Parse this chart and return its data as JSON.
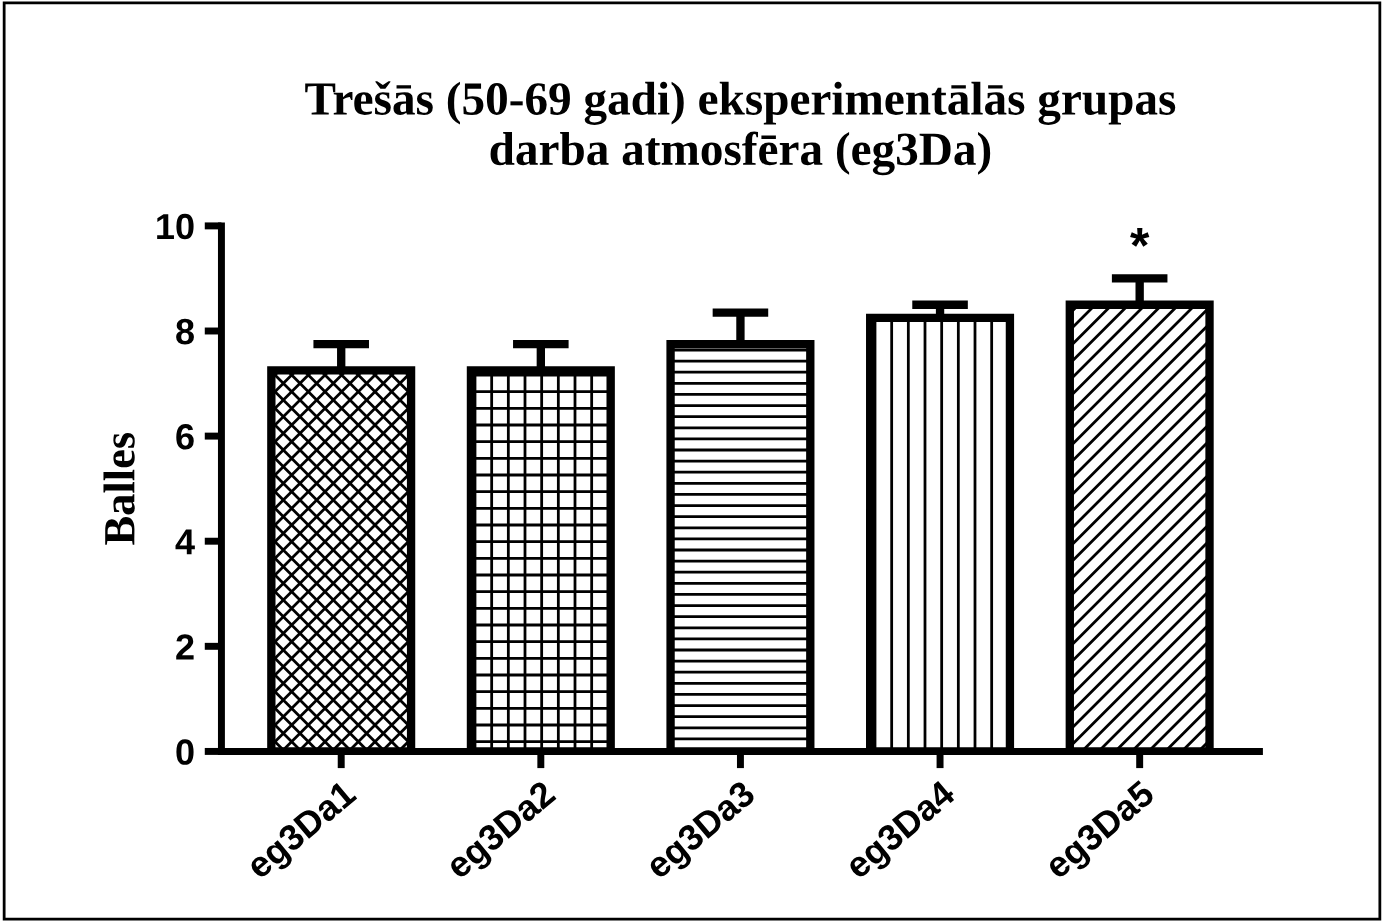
{
  "chart_data": {
    "type": "bar",
    "title": "Trešās (50-69 gadi) eksperimentālās grupas\ndarba atmosfēra (eg3Da)",
    "ylabel": "Balles",
    "categories": [
      "eg3Da1",
      "eg3Da2",
      "eg3Da3",
      "eg3Da4",
      "eg3Da5"
    ],
    "values": [
      7.25,
      7.25,
      7.75,
      8.25,
      8.5
    ],
    "errors": [
      0.5,
      0.5,
      0.6,
      0.25,
      0.5
    ],
    "color": "#000000",
    "ylim": [
      0,
      10
    ],
    "yticks": [
      0,
      2,
      4,
      6,
      8,
      10
    ],
    "grid": false,
    "annotations": [
      "*"
    ]
  }
}
